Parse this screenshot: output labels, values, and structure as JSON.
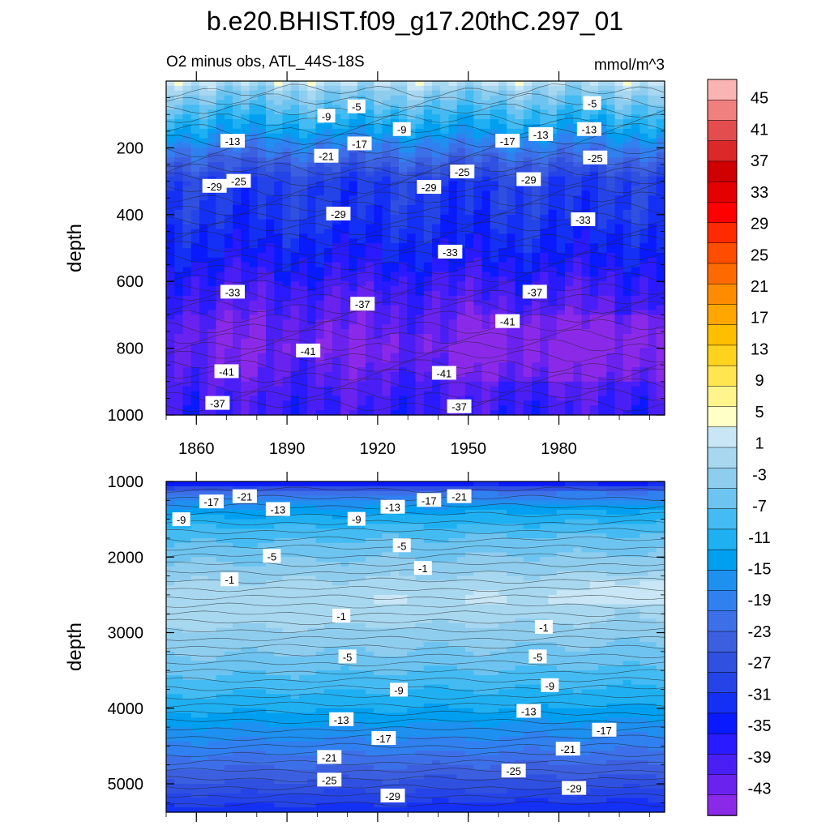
{
  "title": "b.e20.BHIST.f09_g17.20thC.297_01",
  "subtitle_left": "O2 minus obs, ATL_44S-18S",
  "subtitle_right": "mmol/m^3",
  "chart_data": [
    {
      "type": "heatmap",
      "panel": "upper",
      "ylabel": "depth",
      "xlabel": "",
      "xlim": [
        1850,
        2015
      ],
      "ylim": [
        1000,
        0
      ],
      "xticks": [
        "1860",
        "1890",
        "1920",
        "1950",
        "1980"
      ],
      "xtick_values": [
        1860,
        1890,
        1920,
        1950,
        1980
      ],
      "yticks": [
        "200",
        "400",
        "600",
        "800",
        "1000"
      ],
      "ytick_values": [
        200,
        400,
        600,
        800,
        1000
      ],
      "profile_depths": [
        10,
        30,
        60,
        100,
        150,
        200,
        260,
        300,
        400,
        500,
        560,
        600,
        700,
        800,
        900,
        1000
      ],
      "profile_values": [
        1,
        -3,
        -5,
        -9,
        -13,
        -19,
        -25,
        -29,
        -30,
        -33,
        -35,
        -37,
        -40,
        -42,
        -39,
        -37
      ],
      "contour_labels": [
        {
          "text": "-5",
          "x": 1913,
          "y": 77
        },
        {
          "text": "-9",
          "x": 1903,
          "y": 105
        },
        {
          "text": "-9",
          "x": 1928,
          "y": 145
        },
        {
          "text": "-5",
          "x": 1991,
          "y": 67
        },
        {
          "text": "-13",
          "x": 1990,
          "y": 145
        },
        {
          "text": "-13",
          "x": 1872,
          "y": 180
        },
        {
          "text": "-17",
          "x": 1914,
          "y": 188
        },
        {
          "text": "-17",
          "x": 1963,
          "y": 180
        },
        {
          "text": "-13",
          "x": 1974,
          "y": 160
        },
        {
          "text": "-21",
          "x": 1903,
          "y": 225
        },
        {
          "text": "-25",
          "x": 1992,
          "y": 230
        },
        {
          "text": "-25",
          "x": 1874,
          "y": 300
        },
        {
          "text": "-29",
          "x": 1866,
          "y": 315
        },
        {
          "text": "-25",
          "x": 1948,
          "y": 272
        },
        {
          "text": "-29",
          "x": 1937,
          "y": 318
        },
        {
          "text": "-29",
          "x": 1970,
          "y": 295
        },
        {
          "text": "-29",
          "x": 1907,
          "y": 398
        },
        {
          "text": "-33",
          "x": 1988,
          "y": 415
        },
        {
          "text": "-33",
          "x": 1944,
          "y": 512
        },
        {
          "text": "-33",
          "x": 1872,
          "y": 632
        },
        {
          "text": "-37",
          "x": 1915,
          "y": 668
        },
        {
          "text": "-37",
          "x": 1972,
          "y": 632
        },
        {
          "text": "-41",
          "x": 1963,
          "y": 720
        },
        {
          "text": "-41",
          "x": 1897,
          "y": 808
        },
        {
          "text": "-41",
          "x": 1870,
          "y": 870
        },
        {
          "text": "-41",
          "x": 1942,
          "y": 875
        },
        {
          "text": "-37",
          "x": 1867,
          "y": 965
        },
        {
          "text": "-37",
          "x": 1947,
          "y": 975
        }
      ]
    },
    {
      "type": "heatmap",
      "panel": "lower",
      "ylabel": "depth",
      "xlabel": "",
      "xlim": [
        1850,
        2015
      ],
      "ylim": [
        5375,
        1000
      ],
      "yticks": [
        "1000",
        "2000",
        "3000",
        "4000",
        "5000"
      ],
      "ytick_values": [
        1000,
        2000,
        3000,
        4000,
        5000
      ],
      "profile_depths": [
        1000,
        1150,
        1400,
        1700,
        2000,
        2300,
        2500,
        2800,
        3000,
        3300,
        3600,
        4000,
        4300,
        4600,
        5000,
        5375
      ],
      "profile_values": [
        -37,
        -21,
        -13,
        -8,
        -5,
        -2,
        0,
        0,
        -2,
        -4,
        -7,
        -11,
        -15,
        -19,
        -25,
        -31
      ],
      "contour_labels": [
        {
          "text": "-17",
          "x": 1865,
          "y": 1270
        },
        {
          "text": "-21",
          "x": 1876,
          "y": 1200
        },
        {
          "text": "-13",
          "x": 1887,
          "y": 1370
        },
        {
          "text": "-9",
          "x": 1855,
          "y": 1505
        },
        {
          "text": "-9",
          "x": 1913,
          "y": 1500
        },
        {
          "text": "-13",
          "x": 1925,
          "y": 1340
        },
        {
          "text": "-17",
          "x": 1937,
          "y": 1250
        },
        {
          "text": "-21",
          "x": 1947,
          "y": 1200
        },
        {
          "text": "-5",
          "x": 1885,
          "y": 1990
        },
        {
          "text": "-5",
          "x": 1928,
          "y": 1850
        },
        {
          "text": "-1",
          "x": 1871,
          "y": 2300
        },
        {
          "text": "-1",
          "x": 1935,
          "y": 2150
        },
        {
          "text": "-1",
          "x": 1908,
          "y": 2780
        },
        {
          "text": "-1",
          "x": 1975,
          "y": 2930
        },
        {
          "text": "-5",
          "x": 1910,
          "y": 3320
        },
        {
          "text": "-5",
          "x": 1973,
          "y": 3320
        },
        {
          "text": "-9",
          "x": 1927,
          "y": 3760
        },
        {
          "text": "-9",
          "x": 1977,
          "y": 3700
        },
        {
          "text": "-13",
          "x": 1908,
          "y": 4150
        },
        {
          "text": "-13",
          "x": 1970,
          "y": 4040
        },
        {
          "text": "-17",
          "x": 1922,
          "y": 4400
        },
        {
          "text": "-17",
          "x": 1995,
          "y": 4290
        },
        {
          "text": "-21",
          "x": 1904,
          "y": 4650
        },
        {
          "text": "-21",
          "x": 1983,
          "y": 4540
        },
        {
          "text": "-25",
          "x": 1904,
          "y": 4950
        },
        {
          "text": "-25",
          "x": 1965,
          "y": 4830
        },
        {
          "text": "-29",
          "x": 1925,
          "y": 5160
        },
        {
          "text": "-29",
          "x": 1985,
          "y": 5060
        }
      ]
    }
  ],
  "colorbar": {
    "tick_labels": [
      "45",
      "41",
      "37",
      "33",
      "29",
      "25",
      "21",
      "17",
      "13",
      "9",
      "5",
      "1",
      "-3",
      "-7",
      "-11",
      "-15",
      "-19",
      "-23",
      "-27",
      "-31",
      "-35",
      "-39",
      "-43"
    ],
    "colors": [
      "#fbb4b4",
      "#f08080",
      "#e34d4d",
      "#dc2828",
      "#d00000",
      "#e50000",
      "#ff0000",
      "#ff2a00",
      "#ff4d00",
      "#ff6a00",
      "#ff8c00",
      "#ffa600",
      "#ffbe00",
      "#ffd21e",
      "#ffe650",
      "#fff58c",
      "#ffffc8",
      "#c8e6f5",
      "#a8d8f0",
      "#8fcdee",
      "#6ec4f0",
      "#44bbf2",
      "#1fb0f2",
      "#009ff0",
      "#1e90f0",
      "#3080f0",
      "#3d70e8",
      "#3c5fe0",
      "#3050e0",
      "#2544e8",
      "#1530f5",
      "#0a1aff",
      "#2a1aff",
      "#4a1ff5",
      "#6a22ee",
      "#8a2ae8"
    ]
  }
}
